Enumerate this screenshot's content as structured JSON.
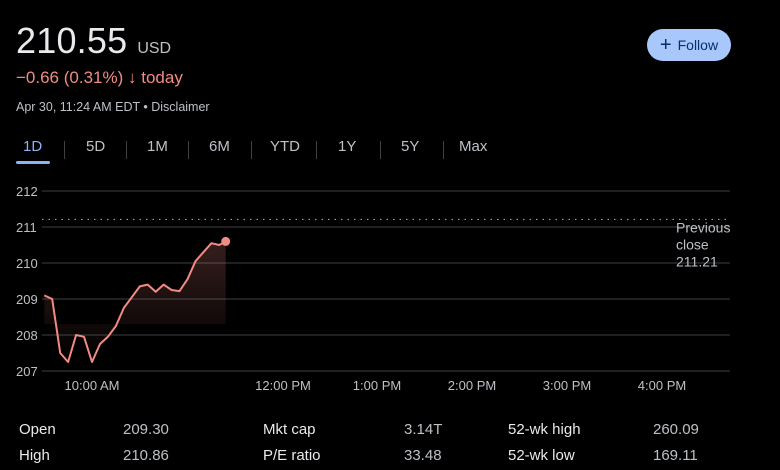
{
  "quote": {
    "price": "210.55",
    "currency": "USD",
    "change": "−0.66 (0.31%)",
    "change_arrow": "↓",
    "change_period": "today",
    "timestamp": "Apr 30, 11:24 AM EDT",
    "disclaimer_sep": " • ",
    "disclaimer": "Disclaimer",
    "follow_label": "Follow"
  },
  "colors": {
    "accent": "#8ab4f8",
    "negative": "#f28b82",
    "follow_bg": "#a8c7fa"
  },
  "tabs": [
    "1D",
    "5D",
    "1M",
    "6M",
    "YTD",
    "1Y",
    "5Y",
    "Max"
  ],
  "active_tab": "1D",
  "chart_data": {
    "type": "line",
    "title": "",
    "ylim": [
      207,
      212
    ],
    "yticks": [
      "212",
      "211",
      "210",
      "209",
      "208",
      "207"
    ],
    "xticks": [
      "10:00 AM",
      "12:00 PM",
      "1:00 PM",
      "2:00 PM",
      "3:00 PM",
      "4:00 PM"
    ],
    "previous_close": {
      "label_line1": "Previous",
      "label_line2": "close",
      "value": "211.21",
      "y": 211.21
    },
    "series": [
      {
        "name": "price",
        "x": [
          "9:30",
          "9:35",
          "9:40",
          "9:45",
          "9:50",
          "9:55",
          "10:00",
          "10:05",
          "10:10",
          "10:15",
          "10:20",
          "10:25",
          "10:30",
          "10:35",
          "10:40",
          "10:45",
          "10:50",
          "10:55",
          "11:00",
          "11:05",
          "11:10",
          "11:15",
          "11:20",
          "11:24"
        ],
        "values": [
          209.1,
          209.0,
          207.5,
          207.25,
          208.0,
          207.95,
          207.25,
          207.75,
          207.95,
          208.25,
          208.75,
          209.05,
          209.35,
          209.4,
          209.2,
          209.4,
          209.25,
          209.22,
          209.55,
          210.05,
          210.3,
          210.55,
          210.5,
          210.6
        ]
      }
    ]
  },
  "stats": [
    {
      "label": "Open",
      "value": "209.30"
    },
    {
      "label": "High",
      "value": "210.86"
    },
    {
      "label": "Mkt cap",
      "value": "3.14T"
    },
    {
      "label": "P/E ratio",
      "value": "33.48"
    },
    {
      "label": "52-wk high",
      "value": "260.09"
    },
    {
      "label": "52-wk low",
      "value": "169.11"
    }
  ]
}
